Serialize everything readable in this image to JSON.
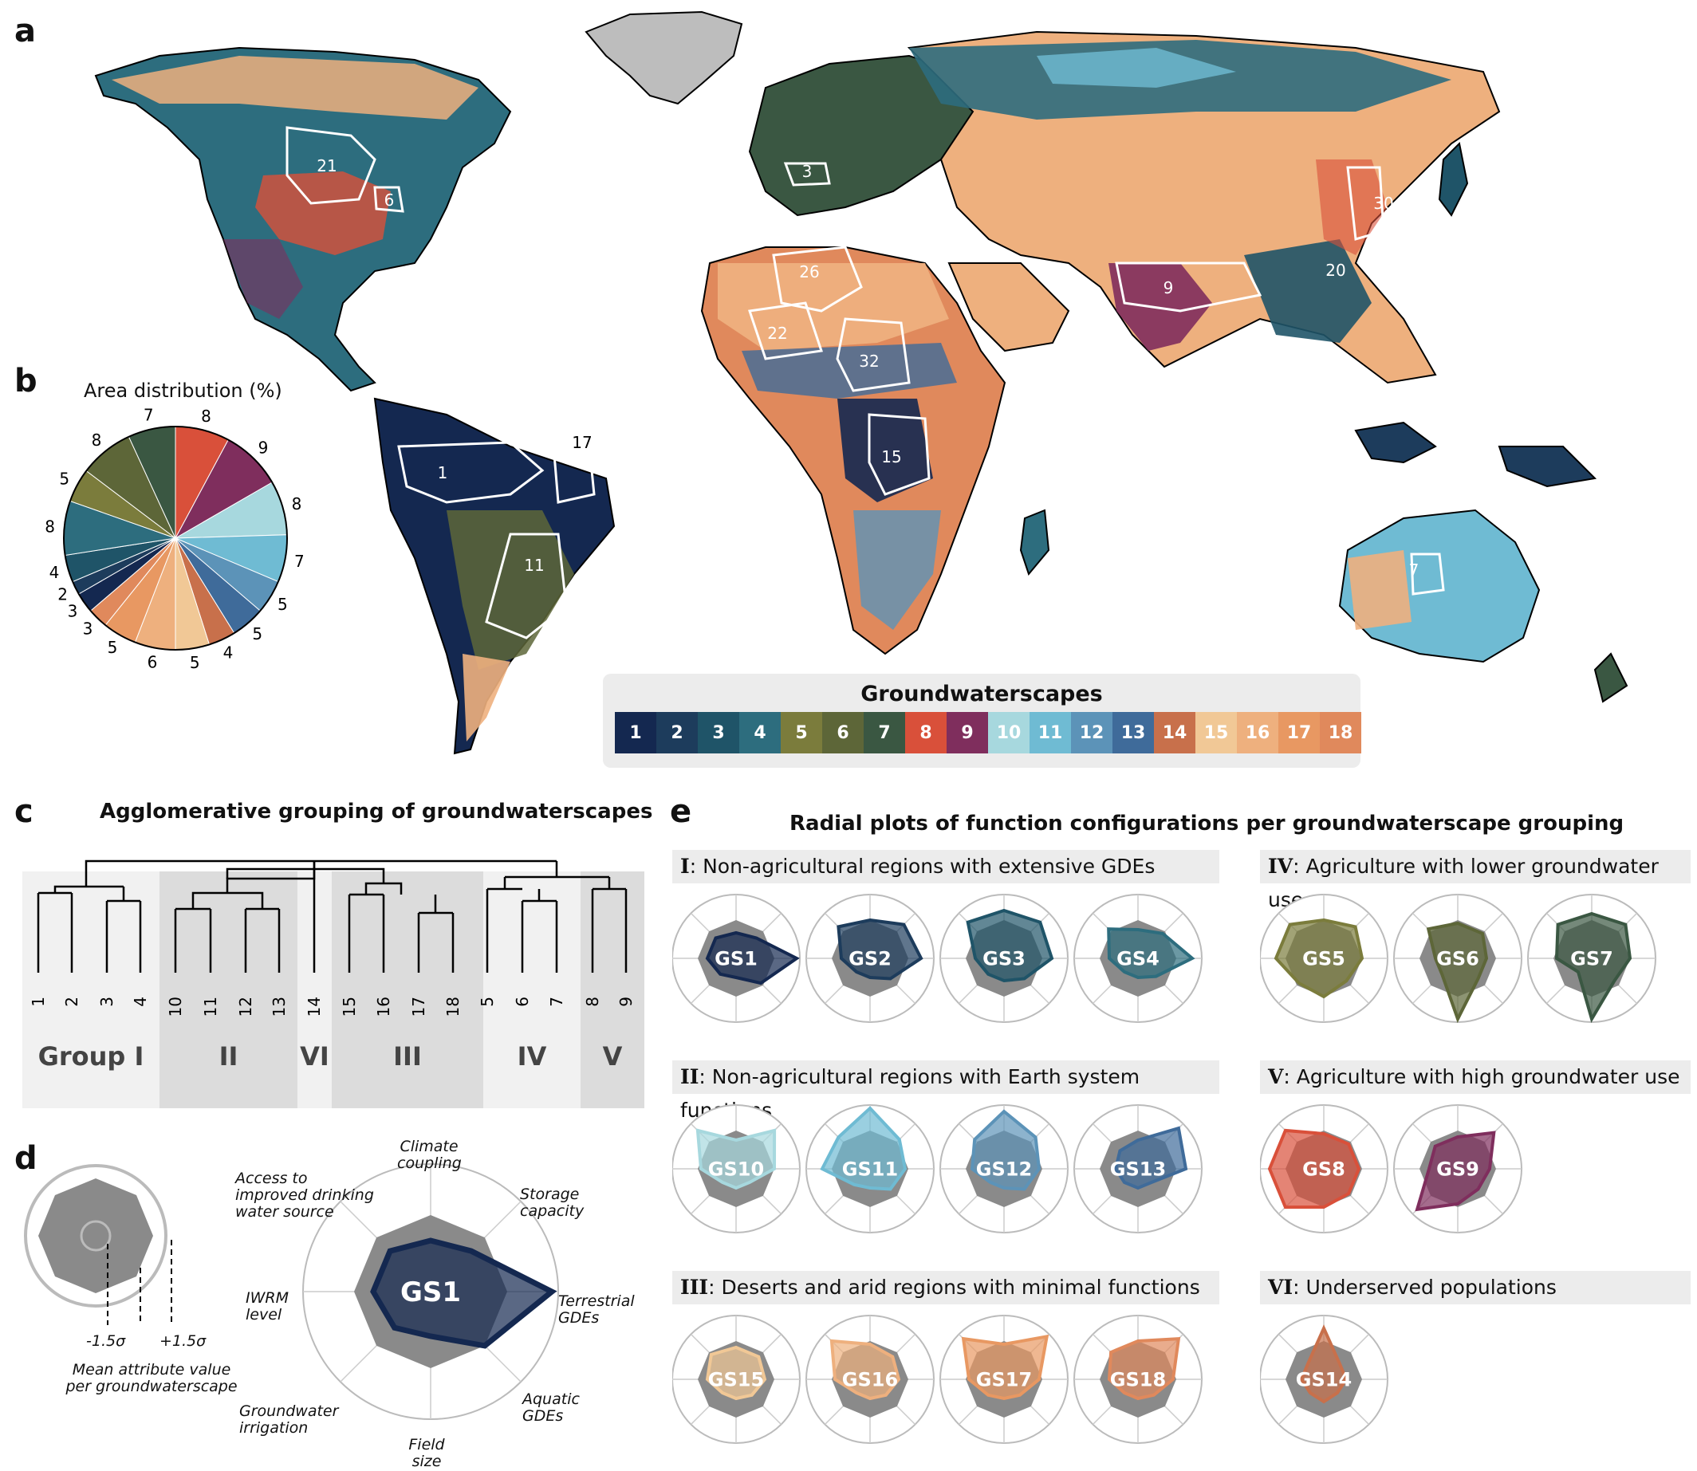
{
  "panels": {
    "a": "a",
    "b": "b",
    "c": "c",
    "d": "d",
    "e": "e"
  },
  "colors": {
    "1": "#142850",
    "2": "#1d3c5c",
    "3": "#1f5468",
    "4": "#2d6d7e",
    "5": "#7b7c3c",
    "6": "#5d6638",
    "7": "#3a5742",
    "8": "#d9503a",
    "9": "#7f2e5d",
    "10": "#a7d8de",
    "11": "#6fbbd3",
    "12": "#5c93b8",
    "13": "#3f6b9a",
    "14": "#c8704b",
    "15": "#f1c896",
    "16": "#eeb07e",
    "17": "#e89862",
    "18": "#e0895c"
  },
  "map": {
    "legend_title": "Groundwaterscapes",
    "legend_items": [
      "1",
      "2",
      "3",
      "4",
      "5",
      "6",
      "7",
      "8",
      "9",
      "10",
      "11",
      "12",
      "13",
      "14",
      "15",
      "16",
      "17",
      "18"
    ],
    "region_labels": [
      "21",
      "6",
      "3",
      "26",
      "22",
      "32",
      "30",
      "20",
      "9",
      "1",
      "17",
      "15",
      "11",
      "7"
    ]
  },
  "pie": {
    "title": "Area distribution (%)",
    "slices": [
      {
        "gs": "8",
        "value": 8
      },
      {
        "gs": "9",
        "value": 9
      },
      {
        "gs": "10",
        "value": 8
      },
      {
        "gs": "11",
        "value": 7
      },
      {
        "gs": "12",
        "value": 5
      },
      {
        "gs": "13",
        "value": 5
      },
      {
        "gs": "14",
        "value": 4
      },
      {
        "gs": "15",
        "value": 5
      },
      {
        "gs": "16",
        "value": 6
      },
      {
        "gs": "17",
        "value": 5
      },
      {
        "gs": "18",
        "value": 3
      },
      {
        "gs": "1",
        "value": 3
      },
      {
        "gs": "2",
        "value": 2
      },
      {
        "gs": "3",
        "value": 4
      },
      {
        "gs": "4",
        "value": 8
      },
      {
        "gs": "5",
        "value": 5
      },
      {
        "gs": "6",
        "value": 8
      },
      {
        "gs": "7",
        "value": 7
      }
    ]
  },
  "dendrogram": {
    "title": "Agglomerative grouping of groundwaterscapes",
    "leaves": [
      "1",
      "2",
      "3",
      "4",
      "10",
      "11",
      "12",
      "13",
      "14",
      "15",
      "16",
      "17",
      "18",
      "5",
      "6",
      "7",
      "8",
      "9"
    ],
    "groups": [
      "Group I",
      "II",
      "VI",
      "III",
      "IV",
      "V"
    ]
  },
  "legend_d": {
    "sigma_low": "-1.5σ",
    "sigma_high": "+1.5σ",
    "mean_label": "Mean attribute value per groundwaterscape",
    "example_label": "GS1",
    "axes": [
      "Climate coupling",
      "Storage capacity",
      "Terrestrial GDEs",
      "Aquatic GDEs",
      "Field size",
      "Groundwater irrigation",
      "IWRM level",
      "Access to improved drinking water source"
    ]
  },
  "radial": {
    "title": "Radial plots of function configurations per groundwaterscape grouping",
    "groups": [
      {
        "num": "I",
        "desc": ": Non-agricultural regions with extensive GDEs",
        "items": [
          "GS1",
          "GS2",
          "GS3",
          "GS4"
        ]
      },
      {
        "num": "IV",
        "desc": ": Agriculture with lower groundwater use",
        "items": [
          "GS5",
          "GS6",
          "GS7"
        ]
      },
      {
        "num": "II",
        "desc": ": Non-agricultural regions with Earth system functions",
        "items": [
          "GS10",
          "GS11",
          "GS12",
          "GS13"
        ]
      },
      {
        "num": "V",
        "desc": ": Agriculture with high groundwater use",
        "items": [
          "GS8",
          "GS9"
        ]
      },
      {
        "num": "III",
        "desc": ": Deserts and arid regions with minimal functions",
        "items": [
          "GS15",
          "GS16",
          "GS17",
          "GS18"
        ]
      },
      {
        "num": "VI",
        "desc": ": Underserved populations",
        "items": [
          "GS14"
        ]
      }
    ]
  }
}
